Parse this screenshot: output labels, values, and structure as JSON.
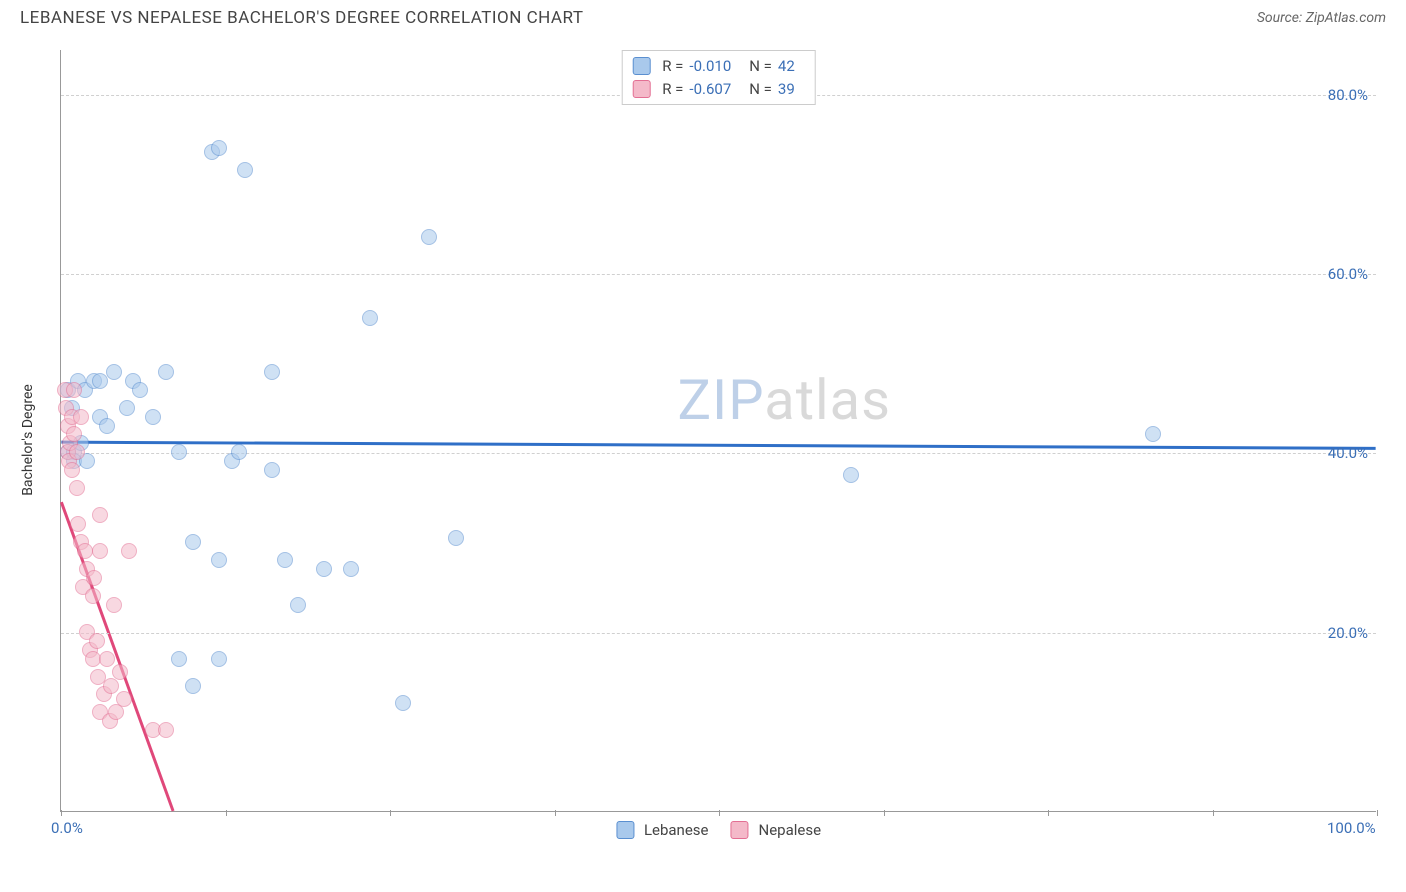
{
  "header": {
    "title": "LEBANESE VS NEPALESE BACHELOR'S DEGREE CORRELATION CHART",
    "source": "Source: ZipAtlas.com"
  },
  "chart": {
    "type": "scatter",
    "ylabel": "Bachelor's Degree",
    "xlim": [
      0,
      100
    ],
    "ylim": [
      0,
      85
    ],
    "ytick_values": [
      20,
      40,
      60,
      80
    ],
    "ytick_labels": [
      "20.0%",
      "40.0%",
      "60.0%",
      "80.0%"
    ],
    "xtick_values": [
      0,
      50,
      100
    ],
    "xtick_labels": [
      "0.0%",
      "",
      "100.0%"
    ],
    "xtick_marks": [
      0,
      12.5,
      25,
      37.5,
      50,
      62.5,
      75,
      87.5,
      100
    ],
    "background_color": "#ffffff",
    "grid_color": "#d0d0d0",
    "marker_radius": 8,
    "marker_opacity": 0.55,
    "series": [
      {
        "name": "Lebanese",
        "fill": "#a9c9ec",
        "stroke": "#5a8fd0",
        "trend_color": "#2f6fc7",
        "trend_width": 3,
        "R": "-0.010",
        "N": "42",
        "trend": {
          "x1": 0,
          "y1": 41.2,
          "x2": 100,
          "y2": 40.5
        },
        "points": [
          [
            0.5,
            40
          ],
          [
            0.5,
            47
          ],
          [
            0.8,
            45
          ],
          [
            1,
            40
          ],
          [
            1,
            39
          ],
          [
            1.3,
            48
          ],
          [
            1.5,
            41
          ],
          [
            1.8,
            47
          ],
          [
            2,
            39
          ],
          [
            2.5,
            48
          ],
          [
            3,
            44
          ],
          [
            3,
            48
          ],
          [
            3.5,
            43
          ],
          [
            4,
            49
          ],
          [
            5,
            45
          ],
          [
            5.5,
            48
          ],
          [
            6,
            47
          ],
          [
            7,
            44
          ],
          [
            8,
            49
          ],
          [
            9,
            40
          ],
          [
            9,
            17
          ],
          [
            10,
            14
          ],
          [
            10,
            30
          ],
          [
            11.5,
            73.5
          ],
          [
            12,
            74
          ],
          [
            12,
            17
          ],
          [
            12,
            28
          ],
          [
            13,
            39
          ],
          [
            13.5,
            40
          ],
          [
            14,
            71.5
          ],
          [
            16,
            49
          ],
          [
            16,
            38
          ],
          [
            17,
            28
          ],
          [
            18,
            23
          ],
          [
            20,
            27
          ],
          [
            22,
            27
          ],
          [
            23.5,
            55
          ],
          [
            26,
            12
          ],
          [
            28,
            64
          ],
          [
            30,
            30.5
          ],
          [
            60,
            37.5
          ],
          [
            83,
            42
          ]
        ]
      },
      {
        "name": "Nepalese",
        "fill": "#f4b9c9",
        "stroke": "#e36f93",
        "trend_color": "#e0487a",
        "trend_width": 3,
        "R": "-0.607",
        "N": "39",
        "trend": {
          "x1": 0,
          "y1": 34.5,
          "x2": 8.5,
          "y2": 0
        },
        "points": [
          [
            0.3,
            47
          ],
          [
            0.4,
            45
          ],
          [
            0.5,
            43
          ],
          [
            0.5,
            40
          ],
          [
            0.6,
            39
          ],
          [
            0.7,
            41
          ],
          [
            0.8,
            44
          ],
          [
            0.8,
            38
          ],
          [
            1,
            47
          ],
          [
            1,
            42
          ],
          [
            1.2,
            40
          ],
          [
            1.2,
            36
          ],
          [
            1.3,
            32
          ],
          [
            1.5,
            44
          ],
          [
            1.5,
            30
          ],
          [
            1.7,
            25
          ],
          [
            1.8,
            29
          ],
          [
            2,
            27
          ],
          [
            2,
            20
          ],
          [
            2.2,
            18
          ],
          [
            2.4,
            17
          ],
          [
            2.4,
            24
          ],
          [
            2.5,
            26
          ],
          [
            2.7,
            19
          ],
          [
            2.8,
            15
          ],
          [
            3,
            33
          ],
          [
            3,
            29
          ],
          [
            3,
            11
          ],
          [
            3.3,
            13
          ],
          [
            3.5,
            17
          ],
          [
            3.7,
            10
          ],
          [
            3.8,
            14
          ],
          [
            4,
            23
          ],
          [
            4.2,
            11
          ],
          [
            4.5,
            15.5
          ],
          [
            4.8,
            12.5
          ],
          [
            5.2,
            29
          ],
          [
            7,
            9
          ],
          [
            8,
            9
          ]
        ]
      }
    ],
    "legend_bottom": [
      {
        "label": "Lebanese",
        "fill": "#a9c9ec",
        "stroke": "#5a8fd0"
      },
      {
        "label": "Nepalese",
        "fill": "#f4b9c9",
        "stroke": "#e36f93"
      }
    ],
    "watermark": {
      "zip": "ZIP",
      "rest": "atlas"
    }
  }
}
